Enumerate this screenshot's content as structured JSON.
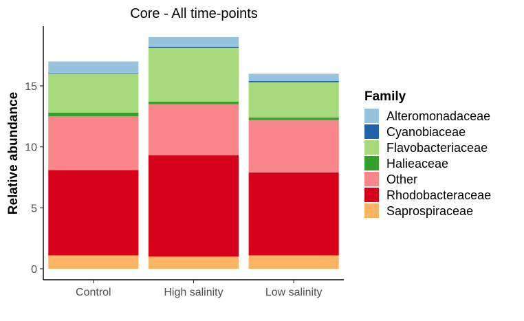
{
  "chart_data": {
    "type": "bar",
    "stacked": true,
    "title": "Core - All time-points",
    "xlabel": "",
    "ylabel": "Relative abundance",
    "categories": [
      "Control",
      "High salinity",
      "Low salinity"
    ],
    "yticks": [
      0,
      5,
      10,
      15
    ],
    "ylim": [
      -0.9,
      19.9
    ],
    "grid": false,
    "legend_title": "Family",
    "legend_position": "right",
    "series": [
      {
        "name": "Saprospiraceae",
        "color": "#FDB462",
        "values": [
          1.1,
          1.0,
          1.1
        ]
      },
      {
        "name": "Rhodobacteraceae",
        "color": "#D7001B",
        "values": [
          7.0,
          8.3,
          6.8
        ]
      },
      {
        "name": "Other",
        "color": "#F8868A",
        "values": [
          4.4,
          4.2,
          4.3
        ]
      },
      {
        "name": "Halieaceae",
        "color": "#33A02C",
        "values": [
          0.3,
          0.2,
          0.2
        ]
      },
      {
        "name": "Flavobacteriaceae",
        "color": "#A6DA7A",
        "values": [
          3.2,
          4.4,
          2.9
        ]
      },
      {
        "name": "Cyanobiaceae",
        "color": "#1F63A8",
        "values": [
          0.05,
          0.1,
          0.1
        ]
      },
      {
        "name": "Alteromonadaceae",
        "color": "#97C3DE",
        "values": [
          0.95,
          0.8,
          0.6
        ]
      }
    ],
    "legend_order": [
      "Alteromonadaceae",
      "Cyanobiaceae",
      "Flavobacteriaceae",
      "Halieaceae",
      "Other",
      "Rhodobacteraceae",
      "Saprospiraceae"
    ]
  }
}
